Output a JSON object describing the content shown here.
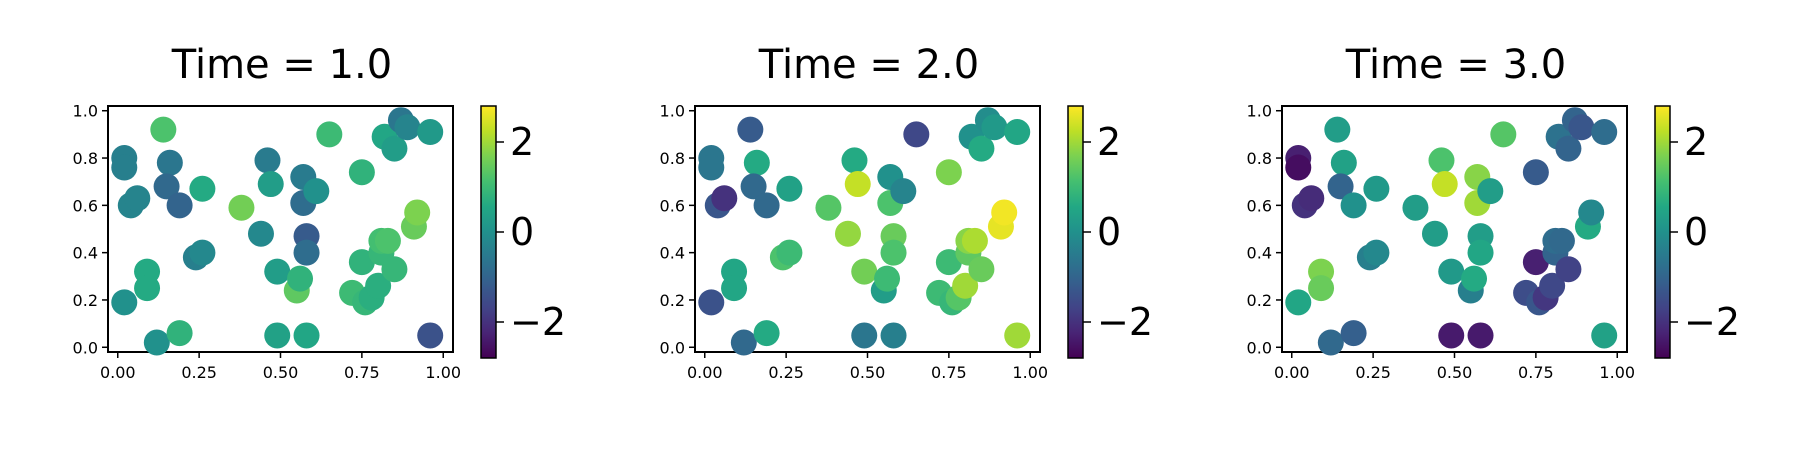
{
  "chart_data": [
    {
      "type": "scatter",
      "title": "Time = 1.0",
      "xlabel": "",
      "ylabel": "",
      "xlim": [
        -0.03,
        1.03
      ],
      "ylim": [
        -0.02,
        1.02
      ],
      "xticks": [
        "0.00",
        "0.25",
        "0.50",
        "0.75",
        "1.00"
      ],
      "yticks": [
        "0.0",
        "0.2",
        "0.4",
        "0.6",
        "0.8",
        "1.0"
      ],
      "colormap": "viridis",
      "clim": [
        -2.8,
        2.8
      ],
      "colorbar_ticks": [
        "−2",
        "0",
        "2"
      ],
      "grid": false,
      "points": [
        {
          "x": 0.02,
          "y": 0.8,
          "v": -0.4
        },
        {
          "x": 0.02,
          "y": 0.76,
          "v": -0.4
        },
        {
          "x": 0.04,
          "y": 0.6,
          "v": -0.3
        },
        {
          "x": 0.06,
          "y": 0.63,
          "v": -0.3
        },
        {
          "x": 0.02,
          "y": 0.19,
          "v": 0.0
        },
        {
          "x": 0.09,
          "y": 0.32,
          "v": 0.6
        },
        {
          "x": 0.09,
          "y": 0.25,
          "v": 0.6
        },
        {
          "x": 0.12,
          "y": 0.02,
          "v": 0.0
        },
        {
          "x": 0.14,
          "y": 0.92,
          "v": 1.2
        },
        {
          "x": 0.16,
          "y": 0.78,
          "v": -0.6
        },
        {
          "x": 0.15,
          "y": 0.68,
          "v": -0.9
        },
        {
          "x": 0.19,
          "y": 0.6,
          "v": -1.0
        },
        {
          "x": 0.19,
          "y": 0.06,
          "v": 0.8
        },
        {
          "x": 0.24,
          "y": 0.38,
          "v": -0.4
        },
        {
          "x": 0.26,
          "y": 0.4,
          "v": -0.2
        },
        {
          "x": 0.26,
          "y": 0.67,
          "v": 0.6
        },
        {
          "x": 0.38,
          "y": 0.59,
          "v": 1.6
        },
        {
          "x": 0.44,
          "y": 0.48,
          "v": -0.2
        },
        {
          "x": 0.46,
          "y": 0.79,
          "v": -0.5
        },
        {
          "x": 0.47,
          "y": 0.69,
          "v": 0.3
        },
        {
          "x": 0.49,
          "y": 0.32,
          "v": 0.3
        },
        {
          "x": 0.49,
          "y": 0.05,
          "v": 0.4
        },
        {
          "x": 0.55,
          "y": 0.24,
          "v": 1.4
        },
        {
          "x": 0.56,
          "y": 0.29,
          "v": 0.8
        },
        {
          "x": 0.57,
          "y": 0.61,
          "v": -0.8
        },
        {
          "x": 0.57,
          "y": 0.72,
          "v": -0.5
        },
        {
          "x": 0.58,
          "y": 0.47,
          "v": -1.2
        },
        {
          "x": 0.58,
          "y": 0.4,
          "v": -0.8
        },
        {
          "x": 0.58,
          "y": 0.05,
          "v": 0.5
        },
        {
          "x": 0.61,
          "y": 0.66,
          "v": 0.0
        },
        {
          "x": 0.65,
          "y": 0.9,
          "v": 1.0
        },
        {
          "x": 0.72,
          "y": 0.23,
          "v": 1.0
        },
        {
          "x": 0.75,
          "y": 0.74,
          "v": 0.8
        },
        {
          "x": 0.75,
          "y": 0.36,
          "v": 0.8
        },
        {
          "x": 0.76,
          "y": 0.19,
          "v": 0.9
        },
        {
          "x": 0.78,
          "y": 0.21,
          "v": 0.7
        },
        {
          "x": 0.8,
          "y": 0.26,
          "v": 0.7
        },
        {
          "x": 0.81,
          "y": 0.4,
          "v": 0.9
        },
        {
          "x": 0.81,
          "y": 0.45,
          "v": 1.1
        },
        {
          "x": 0.82,
          "y": 0.89,
          "v": 0.5
        },
        {
          "x": 0.83,
          "y": 0.45,
          "v": 1.2
        },
        {
          "x": 0.85,
          "y": 0.33,
          "v": 0.9
        },
        {
          "x": 0.85,
          "y": 0.84,
          "v": 0.3
        },
        {
          "x": 0.87,
          "y": 0.96,
          "v": -0.6
        },
        {
          "x": 0.89,
          "y": 0.93,
          "v": -0.3
        },
        {
          "x": 0.91,
          "y": 0.51,
          "v": 1.5
        },
        {
          "x": 0.92,
          "y": 0.57,
          "v": 1.7
        },
        {
          "x": 0.96,
          "y": 0.91,
          "v": 0.2
        },
        {
          "x": 0.96,
          "y": 0.05,
          "v": -1.4
        }
      ]
    },
    {
      "type": "scatter",
      "title": "Time = 2.0",
      "xlabel": "",
      "ylabel": "",
      "xlim": [
        -0.03,
        1.03
      ],
      "ylim": [
        -0.02,
        1.02
      ],
      "xticks": [
        "0.00",
        "0.25",
        "0.50",
        "0.75",
        "1.00"
      ],
      "yticks": [
        "0.0",
        "0.2",
        "0.4",
        "0.6",
        "0.8",
        "1.0"
      ],
      "colormap": "viridis",
      "clim": [
        -2.8,
        2.8
      ],
      "colorbar_ticks": [
        "−2",
        "0",
        "2"
      ],
      "grid": false,
      "points": [
        {
          "x": 0.02,
          "y": 0.8,
          "v": -0.6
        },
        {
          "x": 0.02,
          "y": 0.76,
          "v": -0.6
        },
        {
          "x": 0.04,
          "y": 0.6,
          "v": -1.3
        },
        {
          "x": 0.06,
          "y": 0.63,
          "v": -2.0
        },
        {
          "x": 0.02,
          "y": 0.19,
          "v": -1.4
        },
        {
          "x": 0.09,
          "y": 0.32,
          "v": 0.5
        },
        {
          "x": 0.09,
          "y": 0.25,
          "v": 0.5
        },
        {
          "x": 0.12,
          "y": 0.02,
          "v": -0.9
        },
        {
          "x": 0.14,
          "y": 0.92,
          "v": -1.2
        },
        {
          "x": 0.16,
          "y": 0.78,
          "v": 0.6
        },
        {
          "x": 0.15,
          "y": 0.68,
          "v": -0.9
        },
        {
          "x": 0.19,
          "y": 0.6,
          "v": -0.9
        },
        {
          "x": 0.19,
          "y": 0.06,
          "v": 0.6
        },
        {
          "x": 0.24,
          "y": 0.38,
          "v": 1.2
        },
        {
          "x": 0.26,
          "y": 0.4,
          "v": 1.0
        },
        {
          "x": 0.26,
          "y": 0.67,
          "v": 0.4
        },
        {
          "x": 0.38,
          "y": 0.59,
          "v": 1.3
        },
        {
          "x": 0.44,
          "y": 0.48,
          "v": 1.9
        },
        {
          "x": 0.46,
          "y": 0.79,
          "v": 0.6
        },
        {
          "x": 0.47,
          "y": 0.69,
          "v": 2.3
        },
        {
          "x": 0.49,
          "y": 0.32,
          "v": 1.6
        },
        {
          "x": 0.49,
          "y": 0.05,
          "v": -0.6
        },
        {
          "x": 0.55,
          "y": 0.24,
          "v": 0.3
        },
        {
          "x": 0.56,
          "y": 0.29,
          "v": 1.0
        },
        {
          "x": 0.57,
          "y": 0.61,
          "v": 1.2
        },
        {
          "x": 0.57,
          "y": 0.72,
          "v": 0.0
        },
        {
          "x": 0.58,
          "y": 0.47,
          "v": 1.5
        },
        {
          "x": 0.58,
          "y": 0.4,
          "v": 1.2
        },
        {
          "x": 0.58,
          "y": 0.05,
          "v": -0.4
        },
        {
          "x": 0.61,
          "y": 0.66,
          "v": -0.3
        },
        {
          "x": 0.65,
          "y": 0.9,
          "v": -1.6
        },
        {
          "x": 0.72,
          "y": 0.23,
          "v": 1.0
        },
        {
          "x": 0.75,
          "y": 0.74,
          "v": 1.7
        },
        {
          "x": 0.75,
          "y": 0.36,
          "v": 1.0
        },
        {
          "x": 0.76,
          "y": 0.19,
          "v": 0.9
        },
        {
          "x": 0.78,
          "y": 0.21,
          "v": 1.3
        },
        {
          "x": 0.8,
          "y": 0.26,
          "v": 2.0
        },
        {
          "x": 0.81,
          "y": 0.4,
          "v": 1.4
        },
        {
          "x": 0.81,
          "y": 0.45,
          "v": 1.8
        },
        {
          "x": 0.82,
          "y": 0.89,
          "v": 0.0
        },
        {
          "x": 0.83,
          "y": 0.45,
          "v": 2.1
        },
        {
          "x": 0.85,
          "y": 0.33,
          "v": 1.5
        },
        {
          "x": 0.85,
          "y": 0.84,
          "v": 0.6
        },
        {
          "x": 0.87,
          "y": 0.96,
          "v": -0.1
        },
        {
          "x": 0.89,
          "y": 0.93,
          "v": 0.2
        },
        {
          "x": 0.91,
          "y": 0.51,
          "v": 2.6
        },
        {
          "x": 0.92,
          "y": 0.57,
          "v": 2.7
        },
        {
          "x": 0.96,
          "y": 0.91,
          "v": 0.5
        },
        {
          "x": 0.96,
          "y": 0.05,
          "v": 2.0
        }
      ]
    },
    {
      "type": "scatter",
      "title": "Time = 3.0",
      "xlabel": "",
      "ylabel": "",
      "xlim": [
        -0.03,
        1.03
      ],
      "ylim": [
        -0.02,
        1.02
      ],
      "xticks": [
        "0.00",
        "0.25",
        "0.50",
        "0.75",
        "1.00"
      ],
      "yticks": [
        "0.0",
        "0.2",
        "0.4",
        "0.6",
        "0.8",
        "1.0"
      ],
      "colormap": "viridis",
      "clim": [
        -2.8,
        2.8
      ],
      "colorbar_ticks": [
        "−2",
        "0",
        "2"
      ],
      "grid": false,
      "points": [
        {
          "x": 0.02,
          "y": 0.8,
          "v": -2.3
        },
        {
          "x": 0.02,
          "y": 0.76,
          "v": -2.6
        },
        {
          "x": 0.04,
          "y": 0.6,
          "v": -2.0
        },
        {
          "x": 0.06,
          "y": 0.63,
          "v": -2.1
        },
        {
          "x": 0.02,
          "y": 0.19,
          "v": 0.5
        },
        {
          "x": 0.09,
          "y": 0.32,
          "v": 1.7
        },
        {
          "x": 0.09,
          "y": 0.25,
          "v": 1.5
        },
        {
          "x": 0.12,
          "y": 0.02,
          "v": -0.9
        },
        {
          "x": 0.14,
          "y": 0.92,
          "v": 0.3
        },
        {
          "x": 0.16,
          "y": 0.78,
          "v": 0.4
        },
        {
          "x": 0.15,
          "y": 0.68,
          "v": -1.0
        },
        {
          "x": 0.19,
          "y": 0.6,
          "v": 0.0
        },
        {
          "x": 0.19,
          "y": 0.06,
          "v": -1.1
        },
        {
          "x": 0.24,
          "y": 0.38,
          "v": -0.4
        },
        {
          "x": 0.26,
          "y": 0.4,
          "v": -0.2
        },
        {
          "x": 0.26,
          "y": 0.67,
          "v": 0.2
        },
        {
          "x": 0.38,
          "y": 0.59,
          "v": 0.3
        },
        {
          "x": 0.44,
          "y": 0.48,
          "v": 0.3
        },
        {
          "x": 0.46,
          "y": 0.79,
          "v": 1.2
        },
        {
          "x": 0.47,
          "y": 0.69,
          "v": 2.3
        },
        {
          "x": 0.49,
          "y": 0.32,
          "v": 0.2
        },
        {
          "x": 0.49,
          "y": 0.05,
          "v": -2.4
        },
        {
          "x": 0.55,
          "y": 0.24,
          "v": -0.4
        },
        {
          "x": 0.56,
          "y": 0.29,
          "v": 0.6
        },
        {
          "x": 0.57,
          "y": 0.61,
          "v": 2.0
        },
        {
          "x": 0.57,
          "y": 0.72,
          "v": 1.8
        },
        {
          "x": 0.58,
          "y": 0.47,
          "v": 0.3
        },
        {
          "x": 0.58,
          "y": 0.4,
          "v": 0.5
        },
        {
          "x": 0.58,
          "y": 0.05,
          "v": -2.4
        },
        {
          "x": 0.61,
          "y": 0.66,
          "v": 0.3
        },
        {
          "x": 0.65,
          "y": 0.9,
          "v": 1.3
        },
        {
          "x": 0.72,
          "y": 0.23,
          "v": -1.5
        },
        {
          "x": 0.75,
          "y": 0.74,
          "v": -1.2
        },
        {
          "x": 0.75,
          "y": 0.36,
          "v": -2.3
        },
        {
          "x": 0.76,
          "y": 0.19,
          "v": -1.3
        },
        {
          "x": 0.78,
          "y": 0.21,
          "v": -1.9
        },
        {
          "x": 0.8,
          "y": 0.26,
          "v": -1.6
        },
        {
          "x": 0.81,
          "y": 0.4,
          "v": -1.0
        },
        {
          "x": 0.81,
          "y": 0.45,
          "v": -0.8
        },
        {
          "x": 0.82,
          "y": 0.89,
          "v": -0.7
        },
        {
          "x": 0.83,
          "y": 0.45,
          "v": -0.9
        },
        {
          "x": 0.85,
          "y": 0.33,
          "v": -1.7
        },
        {
          "x": 0.85,
          "y": 0.84,
          "v": -1.0
        },
        {
          "x": 0.87,
          "y": 0.96,
          "v": -1.0
        },
        {
          "x": 0.89,
          "y": 0.93,
          "v": -1.3
        },
        {
          "x": 0.91,
          "y": 0.51,
          "v": 0.6
        },
        {
          "x": 0.92,
          "y": 0.57,
          "v": -0.2
        },
        {
          "x": 0.96,
          "y": 0.91,
          "v": -0.8
        },
        {
          "x": 0.96,
          "y": 0.05,
          "v": 0.4
        }
      ]
    }
  ]
}
